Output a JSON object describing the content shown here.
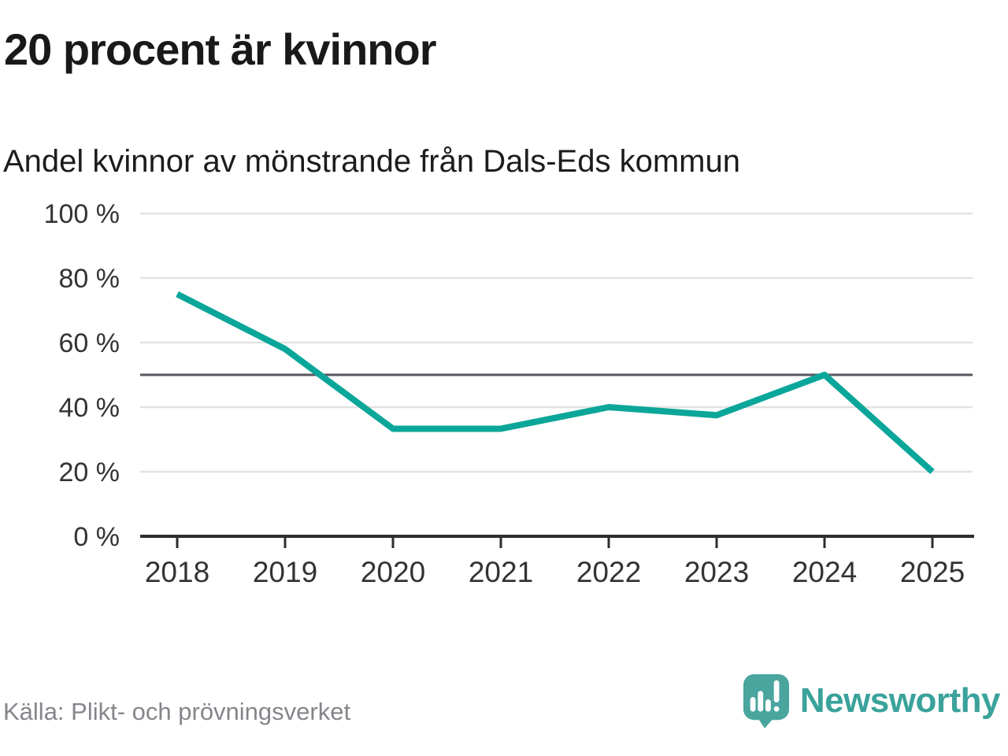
{
  "header": {
    "title": "20 procent är kvinnor",
    "subtitle": "Andel kvinnor av mönstrande från Dals-Eds kommun"
  },
  "chart_data": {
    "type": "line",
    "title": "20 procent är kvinnor",
    "subtitle": "Andel kvinnor av mönstrande från Dals-Eds kommun",
    "categories": [
      "2018",
      "2019",
      "2020",
      "2021",
      "2022",
      "2023",
      "2024",
      "2025"
    ],
    "series": [
      {
        "name": "Andel kvinnor av mönstrande",
        "values": [
          75,
          58,
          33.3,
          33.3,
          40,
          37.5,
          50,
          20
        ]
      }
    ],
    "unit": "%",
    "ylim": [
      0,
      100
    ],
    "yticks": [
      0,
      20,
      40,
      60,
      80,
      100
    ],
    "ytick_suffix": " %",
    "reference_line": 50,
    "grid": true,
    "legend_position": "none",
    "colors": {
      "line": "#0ba69a",
      "grid": "#e3e3e3",
      "reference": "#56565e",
      "axis": "#2d2d2d",
      "tick_text": "#333333"
    }
  },
  "footer": {
    "source": "Källa: Plikt- och prövningsverket",
    "brand": "Newsworthy",
    "brand_color": "#3aa29b",
    "logo_icon": "speech-bubble-bar-chart-icon"
  }
}
